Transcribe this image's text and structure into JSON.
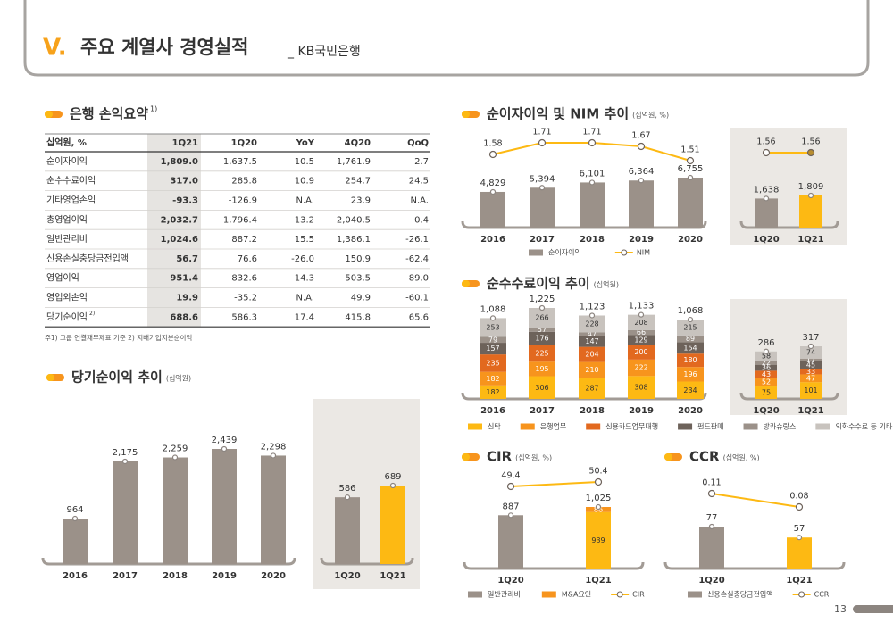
{
  "header": {
    "section": "V.",
    "title": "주요 계열사 경영실적",
    "subtitle": "_ KB국민은행"
  },
  "page_number": "13",
  "table": {
    "title": "은행 손익요약",
    "title_sup": "1)",
    "columns": [
      "십억원, %",
      "1Q21",
      "1Q20",
      "YoY",
      "4Q20",
      "QoQ"
    ],
    "rows": [
      {
        "label": "순이자이익",
        "cells": [
          "1,809.0",
          "1,637.5",
          "10.5",
          "1,761.9",
          "2.7"
        ]
      },
      {
        "label": "순수수료이익",
        "cells": [
          "317.0",
          "285.8",
          "10.9",
          "254.7",
          "24.5"
        ]
      },
      {
        "label": "기타영업손익",
        "cells": [
          "-93.3",
          "-126.9",
          "N.A.",
          "23.9",
          "N.A."
        ]
      },
      {
        "label": "총영업이익",
        "cells": [
          "2,032.7",
          "1,796.4",
          "13.2",
          "2,040.5",
          "-0.4"
        ]
      },
      {
        "label": "일반관리비",
        "cells": [
          "1,024.6",
          "887.2",
          "15.5",
          "1,386.1",
          "-26.1"
        ]
      },
      {
        "label": "신용손실충당금전입액",
        "cells": [
          "56.7",
          "76.6",
          "-26.0",
          "150.9",
          "-62.4"
        ]
      },
      {
        "label": "영업이익",
        "cells": [
          "951.4",
          "832.6",
          "14.3",
          "503.5",
          "89.0"
        ]
      },
      {
        "label": "영업외손익",
        "cells": [
          "19.9",
          "-35.2",
          "N.A.",
          "49.9",
          "-60.1"
        ]
      },
      {
        "label": "당기순이익",
        "sup": "2)",
        "cells": [
          "688.6",
          "586.3",
          "17.4",
          "415.8",
          "65.6"
        ]
      }
    ],
    "footnote": "주1) 그룹 연결재무제표 기준   2) 지배기업지분순이익"
  },
  "chart_data": [
    {
      "type": "combo",
      "title": "순이자이익 및 NIM 추이",
      "unit": "(십억원, %)",
      "series": [
        {
          "name": "순이자이익",
          "type": "bar",
          "color": "#9b9189"
        },
        {
          "name": "NIM",
          "type": "line",
          "color": "#fdb913"
        }
      ],
      "panels": [
        {
          "categories": [
            "2016",
            "2017",
            "2018",
            "2019",
            "2020"
          ],
          "series": [
            {
              "values": [
                4829,
                5394,
                6101,
                6364,
                6755
              ],
              "value_labels": [
                "4,829",
                "5,394",
                "6,101",
                "6,364",
                "6,755"
              ]
            },
            {
              "values": [
                1.58,
                1.71,
                1.71,
                1.67,
                1.51
              ]
            }
          ]
        },
        {
          "categories": [
            "1Q20",
            "1Q21"
          ],
          "series": [
            {
              "values": [
                1638,
                1809
              ],
              "value_labels": [
                "1,638",
                "1,809"
              ],
              "colors": [
                "#9b9189",
                "#fdb913"
              ]
            },
            {
              "values": [
                1.56,
                1.56
              ]
            }
          ]
        }
      ]
    },
    {
      "type": "combo",
      "title": "순수수료이익 추이",
      "unit": "(십억원)",
      "series": [
        {
          "name": "신탁",
          "type": "bar",
          "color": "#fdb913"
        },
        {
          "name": "은행업무",
          "type": "bar",
          "color": "#f7941d"
        },
        {
          "name": "신용카드업무대행",
          "type": "bar",
          "color": "#e2691f"
        },
        {
          "name": "펀드판매",
          "type": "bar",
          "color": "#6d625a"
        },
        {
          "name": "방카슈랑스",
          "type": "bar",
          "color": "#9b9189"
        },
        {
          "name": "외화수수료 등 기타",
          "type": "bar",
          "color": "#c8c3be"
        }
      ],
      "panels": [
        {
          "categories": [
            "2016",
            "2017",
            "2018",
            "2019",
            "2020"
          ],
          "total_labels": [
            "1,088",
            "1,225",
            "1,123",
            "1,133",
            "1,068"
          ],
          "series": [
            {
              "values": [
                182,
                306,
                287,
                308,
                234
              ]
            },
            {
              "values": [
                182,
                195,
                210,
                222,
                196
              ]
            },
            {
              "values": [
                235,
                225,
                204,
                200,
                180
              ]
            },
            {
              "values": [
                157,
                176,
                147,
                129,
                154
              ]
            },
            {
              "values": [
                79,
                57,
                47,
                66,
                89
              ]
            },
            {
              "values": [
                253,
                266,
                228,
                208,
                215
              ]
            }
          ]
        },
        {
          "categories": [
            "1Q20",
            "1Q21"
          ],
          "total_labels": [
            "286",
            "317"
          ],
          "series": [
            {
              "values": [
                75,
                101
              ]
            },
            {
              "values": [
                52,
                47
              ]
            },
            {
              "values": [
                43,
                33
              ]
            },
            {
              "values": [
                36,
                45
              ]
            },
            {
              "values": [
                22,
                17
              ]
            },
            {
              "values": [
                58,
                74
              ]
            }
          ]
        }
      ]
    },
    {
      "type": "combo",
      "title": "당기순이익 추이",
      "unit": "(십억원)",
      "series": [
        {
          "type": "bar",
          "color": "#9b9189"
        }
      ],
      "panels": [
        {
          "categories": [
            "2016",
            "2017",
            "2018",
            "2019",
            "2020"
          ],
          "series": [
            {
              "values": [
                964,
                2175,
                2259,
                2439,
                2298
              ],
              "value_labels": [
                "964",
                "2,175",
                "2,259",
                "2,439",
                "2,298"
              ]
            }
          ]
        },
        {
          "categories": [
            "1Q20",
            "1Q21"
          ],
          "series": [
            {
              "values": [
                586,
                689
              ],
              "colors": [
                "#9b9189",
                "#fdb913"
              ]
            }
          ]
        }
      ]
    },
    {
      "type": "combo",
      "title": "CIR",
      "unit": "(십억원, %)",
      "series": [
        {
          "name": "일반관리비",
          "type": "bar",
          "color": "#9b9189"
        },
        {
          "name": "M&A요인",
          "type": "bar",
          "color": "#f7941d"
        },
        {
          "name": "CIR",
          "type": "line",
          "color": "#fdb913"
        }
      ],
      "panels": [
        {
          "categories": [
            "1Q20",
            "1Q21"
          ],
          "total_labels": [
            null,
            "1,025"
          ],
          "series": [
            {
              "values": [
                887,
                939
              ],
              "colors": [
                "#9b9189",
                "#fdb913"
              ]
            },
            {
              "values": [
                null,
                86
              ]
            },
            {
              "values": [
                49.4,
                50.4
              ]
            }
          ]
        }
      ]
    },
    {
      "type": "combo",
      "title": "CCR",
      "unit": "(십억원, %)",
      "series": [
        {
          "name": "신용손실충당금전입액",
          "type": "bar",
          "color": "#9b9189"
        },
        {
          "name": "CCR",
          "type": "line",
          "color": "#fdb913"
        }
      ],
      "panels": [
        {
          "categories": [
            "1Q20",
            "1Q21"
          ],
          "series": [
            {
              "values": [
                77,
                57
              ],
              "colors": [
                "#9b9189",
                "#fdb913"
              ]
            },
            {
              "values": [
                0.11,
                0.08
              ]
            }
          ]
        }
      ]
    }
  ]
}
